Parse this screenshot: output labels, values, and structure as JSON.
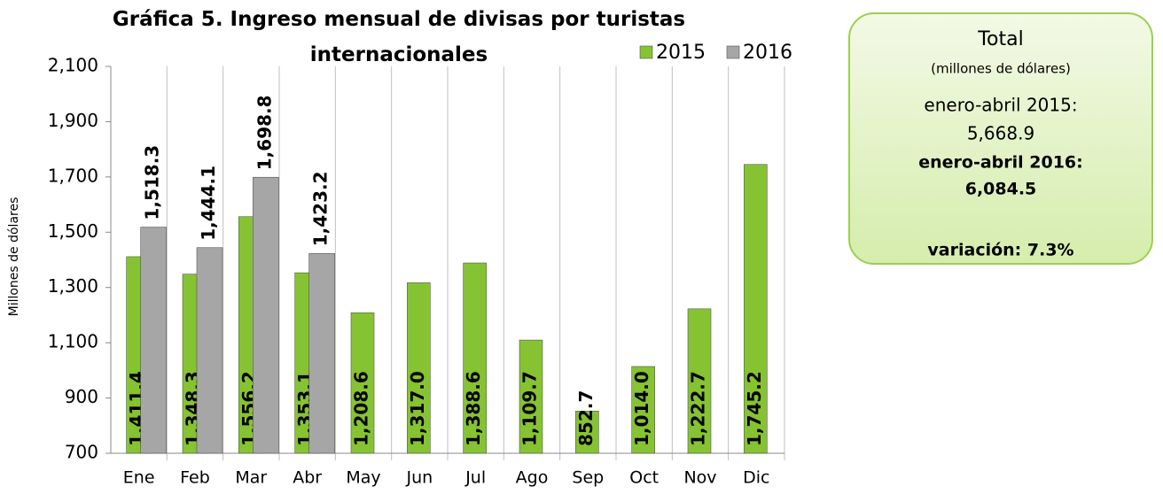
{
  "chart_data": {
    "type": "bar",
    "title": "Gráfica 5. Ingreso mensual de  divisas por turistas internacionales",
    "y_label": "Millones de dólares",
    "categories": [
      "Ene",
      "Feb",
      "Mar",
      "Abr",
      "May",
      "Jun",
      "Jul",
      "Ago",
      "Sep",
      "Oct",
      "Nov",
      "Dic"
    ],
    "series": [
      {
        "name": "2015",
        "color": "#86c332",
        "values": [
          1411.4,
          1348.3,
          1556.2,
          1353.1,
          1208.6,
          1317.0,
          1388.6,
          1109.7,
          852.7,
          1014.0,
          1222.7,
          1745.2
        ],
        "value_labels": [
          "1,411.4",
          "1,348.3",
          "1,556.2",
          "1,353.1",
          "1,208.6",
          "1,317.0",
          "1,388.6",
          "1,109.7",
          "852.7",
          "1,014.0",
          "1,222.7",
          "1,745.2"
        ]
      },
      {
        "name": "2016",
        "color": "#a6a6a6",
        "values": [
          1518.3,
          1444.1,
          1698.8,
          1423.2,
          null,
          null,
          null,
          null,
          null,
          null,
          null,
          null
        ],
        "value_labels": [
          "1,518.3",
          "1,444.1",
          "1,698.8",
          "1,423.2",
          null,
          null,
          null,
          null,
          null,
          null,
          null,
          null
        ]
      }
    ],
    "ylim": [
      700,
      2100
    ],
    "yticks": [
      700,
      900,
      {
        "value": 1100,
        "label": "1,100"
      },
      {
        "value": 1300,
        "label": "1,300"
      },
      {
        "value": 1500,
        "label": "1,500"
      },
      {
        "value": 1700,
        "label": "1,700"
      },
      {
        "value": 1900,
        "label": "1,900"
      },
      {
        "value": 2100,
        "label": "2,100"
      }
    ],
    "legend": "top-right",
    "summary": {
      "heading": "Total",
      "unit": "(millones de dólares)",
      "period_2015": "enero-abril 2015:",
      "total_2015": "5,668.9",
      "period_2016": "enero-abril 2016:",
      "total_2016": "6,084.5",
      "change": "variación: 7.3%"
    }
  }
}
